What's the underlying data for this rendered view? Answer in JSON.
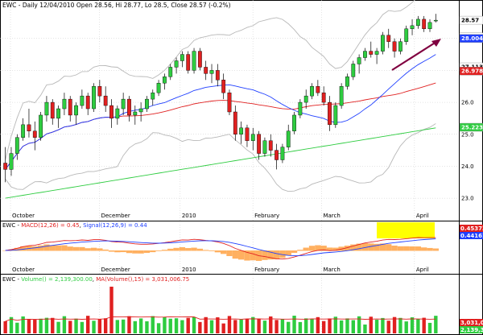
{
  "chart_data": {
    "type": "candlestick",
    "symbol": "EWC",
    "panels": [
      {
        "id": "price",
        "title": "EWC - Daily 12/04/2010 Open 28.56, Hi 28.77, Lo 28.5, Close 28.57 (-0.2%)",
        "y_ticks": [
          "23.0",
          "24.0",
          "25.0",
          "26.0",
          "27.0",
          "28.0"
        ],
        "y_range": [
          22.6,
          28.9
        ],
        "x_labels": [
          "October",
          "December",
          "2010",
          "February",
          "March",
          "April"
        ],
        "price_tags": [
          {
            "value": "28.0555",
            "y": 28.05,
            "bg": "#ffffff",
            "fg": "#000000"
          },
          {
            "value": "28.57",
            "y": 28.57,
            "bg": "#ffffff",
            "fg": "#000000"
          },
          {
            "value": "28.004",
            "y": 28.0,
            "bg": "#1f3fff",
            "fg": "#ffffff"
          },
          {
            "value": "27.1135",
            "y": 27.11,
            "bg": "#ffffff",
            "fg": "#000000"
          },
          {
            "value": "26.9781",
            "y": 26.98,
            "bg": "#e02020",
            "fg": "#ffffff"
          },
          {
            "value": "25.2232",
            "y": 25.22,
            "bg": "#2ecc40",
            "fg": "#ffffff"
          }
        ],
        "candles": [
          [
            24.1,
            24.6,
            23.5,
            23.9
          ],
          [
            23.9,
            24.6,
            23.7,
            24.4
          ],
          [
            24.4,
            25.0,
            24.2,
            24.9
          ],
          [
            24.9,
            25.5,
            24.8,
            25.3
          ],
          [
            25.3,
            25.8,
            24.9,
            25.1
          ],
          [
            25.1,
            25.4,
            24.5,
            24.9
          ],
          [
            24.9,
            25.7,
            24.8,
            25.6
          ],
          [
            25.6,
            26.2,
            25.4,
            26.0
          ],
          [
            26.0,
            26.1,
            25.3,
            25.5
          ],
          [
            25.5,
            25.9,
            25.2,
            25.8
          ],
          [
            25.8,
            26.3,
            25.6,
            26.1
          ],
          [
            26.1,
            26.2,
            25.4,
            25.6
          ],
          [
            25.6,
            26.0,
            25.3,
            25.9
          ],
          [
            25.9,
            26.4,
            25.8,
            26.2
          ],
          [
            26.2,
            26.3,
            25.6,
            25.8
          ],
          [
            25.8,
            26.6,
            25.7,
            26.5
          ],
          [
            26.5,
            26.7,
            26.0,
            26.2
          ],
          [
            26.2,
            26.5,
            25.7,
            25.9
          ],
          [
            25.9,
            26.1,
            25.2,
            25.5
          ],
          [
            25.5,
            25.9,
            25.3,
            25.8
          ],
          [
            25.8,
            26.3,
            25.6,
            26.1
          ],
          [
            26.1,
            26.2,
            25.4,
            25.6
          ],
          [
            25.6,
            25.9,
            25.3,
            25.7
          ],
          [
            25.7,
            26.0,
            25.4,
            25.8
          ],
          [
            25.8,
            26.2,
            25.7,
            26.1
          ],
          [
            26.1,
            26.4,
            25.9,
            26.3
          ],
          [
            26.3,
            26.7,
            26.2,
            26.6
          ],
          [
            26.6,
            26.9,
            26.4,
            26.8
          ],
          [
            26.8,
            27.2,
            26.7,
            27.1
          ],
          [
            27.1,
            27.4,
            26.9,
            27.3
          ],
          [
            27.3,
            27.6,
            27.1,
            27.5
          ],
          [
            27.5,
            27.6,
            26.9,
            27.0
          ],
          [
            27.0,
            27.7,
            26.9,
            27.6
          ],
          [
            27.6,
            27.7,
            27.0,
            27.1
          ],
          [
            27.1,
            27.3,
            26.7,
            26.9
          ],
          [
            26.9,
            27.2,
            26.6,
            27.0
          ],
          [
            27.0,
            27.2,
            26.5,
            26.7
          ],
          [
            26.7,
            26.9,
            26.1,
            26.3
          ],
          [
            26.3,
            26.4,
            25.6,
            25.7
          ],
          [
            25.7,
            25.9,
            24.8,
            25.0
          ],
          [
            25.0,
            25.4,
            24.7,
            25.2
          ],
          [
            25.2,
            25.3,
            24.6,
            24.8
          ],
          [
            24.8,
            25.2,
            24.5,
            25.0
          ],
          [
            25.0,
            25.1,
            24.2,
            24.4
          ],
          [
            24.4,
            24.9,
            24.3,
            24.8
          ],
          [
            24.8,
            25.0,
            24.3,
            24.5
          ],
          [
            24.5,
            24.7,
            23.9,
            24.2
          ],
          [
            24.2,
            24.7,
            24.1,
            24.6
          ],
          [
            24.6,
            25.3,
            24.5,
            25.1
          ],
          [
            25.1,
            25.7,
            25.0,
            25.6
          ],
          [
            25.6,
            26.1,
            25.5,
            26.0
          ],
          [
            26.0,
            26.4,
            25.8,
            26.2
          ],
          [
            26.2,
            26.6,
            26.1,
            26.5
          ],
          [
            26.5,
            26.7,
            26.2,
            26.3
          ],
          [
            26.3,
            26.5,
            25.9,
            26.0
          ],
          [
            26.0,
            26.2,
            25.1,
            25.3
          ],
          [
            25.3,
            26.0,
            25.2,
            25.9
          ],
          [
            25.9,
            26.6,
            25.8,
            26.5
          ],
          [
            26.5,
            26.9,
            26.4,
            26.8
          ],
          [
            26.8,
            27.3,
            26.7,
            27.2
          ],
          [
            27.2,
            27.5,
            26.9,
            27.4
          ],
          [
            27.4,
            27.7,
            27.3,
            27.6
          ],
          [
            27.6,
            27.9,
            27.4,
            27.5
          ],
          [
            27.5,
            27.7,
            27.2,
            27.6
          ],
          [
            27.6,
            28.2,
            27.5,
            28.1
          ],
          [
            28.1,
            28.3,
            27.7,
            27.9
          ],
          [
            27.9,
            28.0,
            27.4,
            27.6
          ],
          [
            27.6,
            28.0,
            27.5,
            27.9
          ],
          [
            27.9,
            28.4,
            27.8,
            28.3
          ],
          [
            28.3,
            28.6,
            28.1,
            28.4
          ],
          [
            28.4,
            28.7,
            28.3,
            28.6
          ],
          [
            28.6,
            28.7,
            28.2,
            28.3
          ],
          [
            28.3,
            28.6,
            28.2,
            28.5
          ],
          [
            28.56,
            28.77,
            28.5,
            28.57
          ]
        ],
        "annotation": "upward-trend-arrow"
      },
      {
        "id": "macd",
        "title_parts": [
          {
            "text": "EWC - ",
            "color": "#000000"
          },
          {
            "text": "MACD(12,26) = 0.45",
            "color": "#e02020"
          },
          {
            "text": ", ",
            "color": "#000000"
          },
          {
            "text": "Signal(12,26,9) = 0.44",
            "color": "#1f3fff"
          }
        ],
        "price_tags": [
          {
            "value": "0.453737",
            "bg": "#e02020",
            "fg": "#ffffff"
          },
          {
            "value": "0.44161",
            "bg": "#1f3fff",
            "fg": "#ffffff"
          }
        ],
        "x_labels": [
          "October",
          "December",
          "2010",
          "February",
          "March",
          "April"
        ],
        "highlight": {
          "color": "#ffff00"
        }
      },
      {
        "id": "volume",
        "title_parts": [
          {
            "text": "EWC - ",
            "color": "#000000"
          },
          {
            "text": "Volume() = 2,139,300.00",
            "color": "#2ecc40"
          },
          {
            "text": ", ",
            "color": "#000000"
          },
          {
            "text": "MA(Volume(),15) = 3,031,006.75",
            "color": "#e02020"
          }
        ],
        "price_tags": [
          {
            "value": "3,031,006",
            "bg": "#e02020",
            "fg": "#ffffff"
          },
          {
            "value": "2,139,300",
            "bg": "#2ecc40",
            "fg": "#ffffff"
          }
        ]
      }
    ],
    "colors": {
      "up_candle": "#2ecc40",
      "down_candle": "#e02020",
      "wick": "#000000",
      "ma_short": "#1f3fff",
      "ma_mid": "#e02020",
      "ma_long": "#2ecc40",
      "bollinger": "#b8b8b8",
      "macd_hist": "#ffb060",
      "arrow": "#800040",
      "grid": "#c8c8c8"
    }
  }
}
